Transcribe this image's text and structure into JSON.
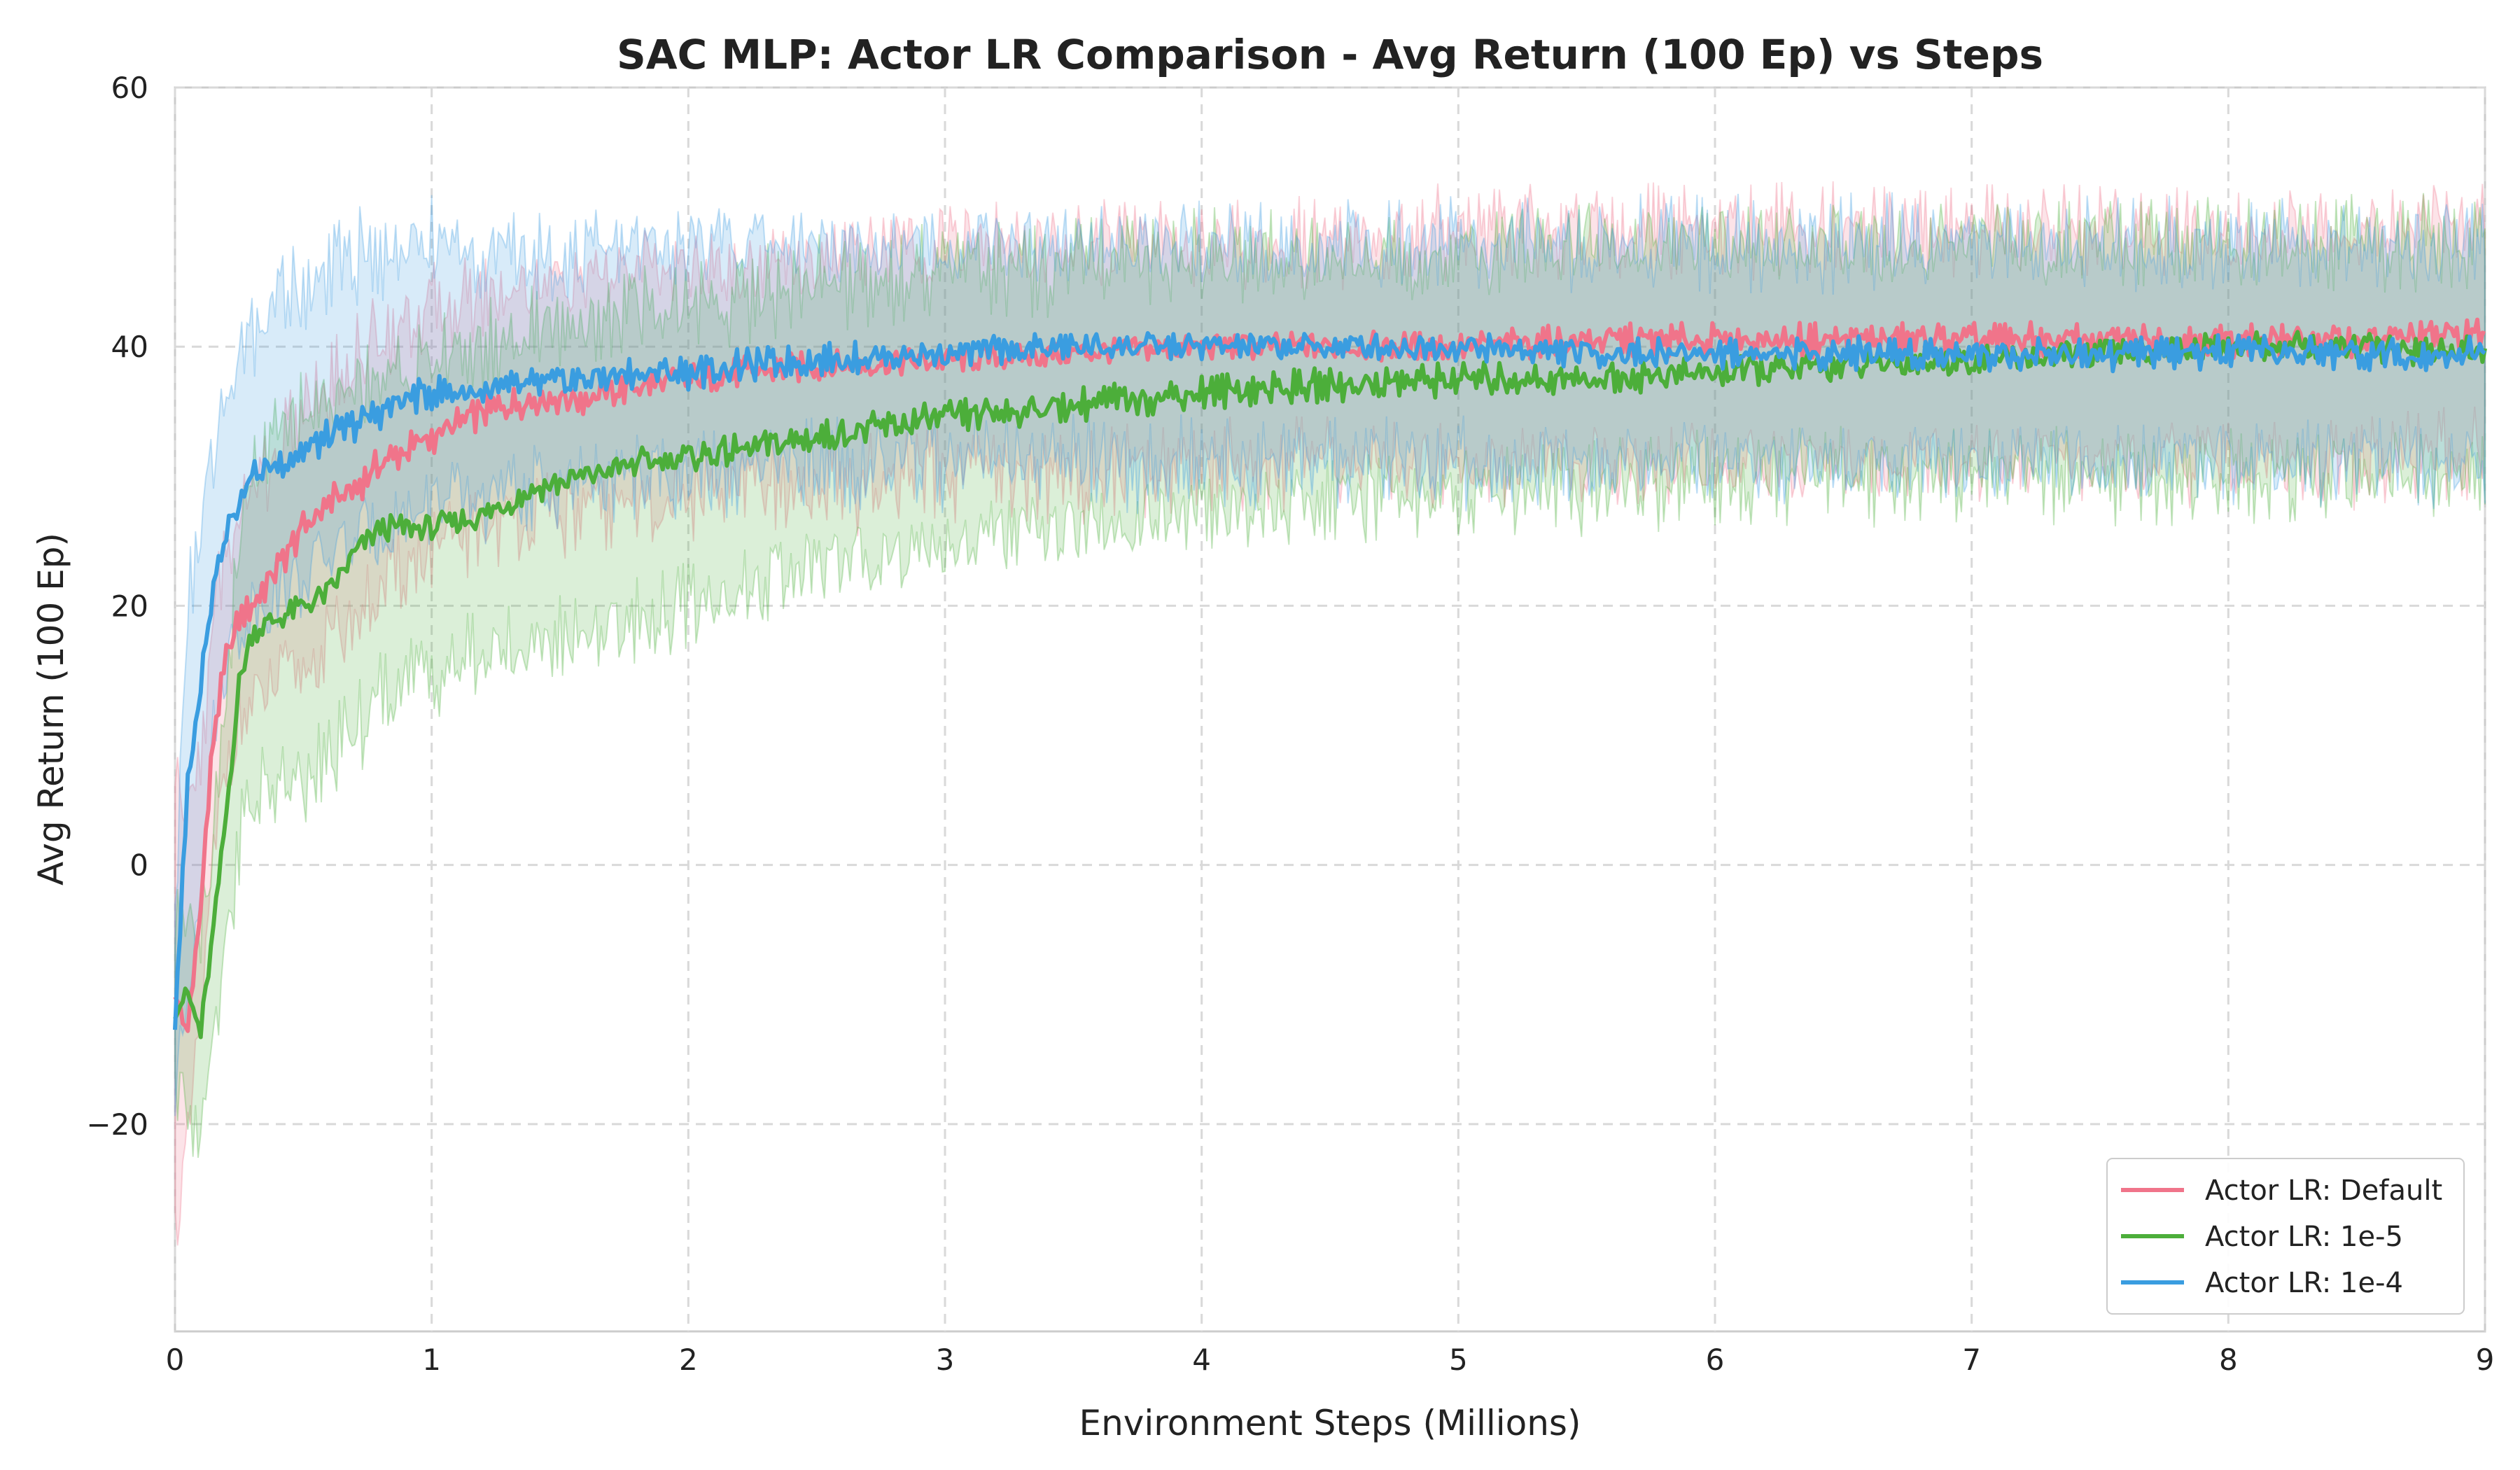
{
  "chart_data": {
    "type": "line",
    "title": "SAC MLP: Actor LR Comparison - Avg Return (100 Ep) vs Steps",
    "xlabel": "Environment Steps (Millions)",
    "ylabel": "Avg Return (100 Ep)",
    "xlim": [
      0,
      9
    ],
    "ylim": [
      -36,
      60
    ],
    "xticks": [
      0,
      1,
      2,
      3,
      4,
      5,
      6,
      7,
      8,
      9
    ],
    "xtick_labels": [
      "0",
      "1",
      "2",
      "3",
      "4",
      "5",
      "6",
      "7",
      "8",
      "9"
    ],
    "yticks": [
      -20,
      0,
      20,
      40,
      60
    ],
    "ytick_labels": [
      "−20",
      "0",
      "20",
      "40",
      "60"
    ],
    "grid": true,
    "legend_position": "lower-right",
    "series": [
      {
        "name": "Actor LR: Default",
        "color": "#f0748a",
        "x": [
          0,
          0.05,
          0.1,
          0.15,
          0.2,
          0.25,
          0.3,
          0.4,
          0.5,
          0.6,
          0.7,
          0.8,
          0.9,
          1.0,
          1.2,
          1.4,
          1.6,
          1.8,
          2.0,
          2.2,
          2.5,
          3.0,
          3.5,
          4.0,
          4.5,
          5.0,
          5.5,
          6.0,
          6.5,
          7.0,
          7.5,
          8.0,
          8.5,
          9.0
        ],
        "y": [
          -10,
          -13,
          -3,
          10,
          16,
          19,
          20,
          23,
          26,
          28,
          29,
          31,
          32,
          33,
          35,
          36,
          36,
          37,
          37.5,
          38,
          38.5,
          39,
          39.5,
          40,
          40,
          40,
          40.5,
          40.5,
          40.5,
          40.5,
          40.5,
          40.5,
          40.5,
          41
        ],
        "band_lower": [
          -28,
          -22,
          -12,
          0,
          8,
          11,
          12,
          14,
          15,
          17,
          19,
          21,
          23,
          24,
          26,
          27,
          27,
          28,
          28,
          29,
          29,
          30,
          30,
          31,
          31,
          31,
          31,
          31,
          31,
          31,
          31,
          31,
          31,
          32
        ],
        "band_upper": [
          6,
          4,
          8,
          20,
          24,
          27,
          29,
          32,
          35,
          37,
          39,
          41,
          42,
          43,
          44,
          45,
          45,
          46,
          46,
          46,
          47,
          48,
          48,
          48,
          48,
          49,
          49,
          49,
          49,
          49,
          49,
          49,
          49,
          50
        ]
      },
      {
        "name": "Actor LR: 1e-5",
        "color": "#4cae3a",
        "x": [
          0,
          0.05,
          0.1,
          0.15,
          0.2,
          0.25,
          0.3,
          0.4,
          0.5,
          0.6,
          0.7,
          0.8,
          0.9,
          1.0,
          1.2,
          1.4,
          1.6,
          1.8,
          2.0,
          2.2,
          2.5,
          3.0,
          3.5,
          4.0,
          4.5,
          5.0,
          5.5,
          6.0,
          6.5,
          7.0,
          7.5,
          8.0,
          8.5,
          9.0
        ],
        "y": [
          -11,
          -10,
          -13,
          -5,
          4,
          14,
          18,
          19,
          20,
          21,
          24,
          26,
          26,
          26,
          27,
          29,
          30,
          31,
          31.5,
          32,
          33,
          34.5,
          35.5,
          36.5,
          37,
          37.5,
          37.5,
          38,
          38.5,
          39,
          39.5,
          40,
          40,
          39.5
        ],
        "band_lower": [
          -17,
          -18,
          -20,
          -12,
          -6,
          2,
          5,
          6,
          6,
          8,
          10,
          13,
          14,
          15,
          16,
          17,
          18,
          19,
          20,
          21,
          23,
          25,
          26,
          27,
          28,
          29,
          29,
          30,
          30,
          30,
          30,
          30,
          30,
          30
        ],
        "band_upper": [
          -5,
          -2,
          -5,
          3,
          14,
          25,
          30,
          33,
          35,
          36,
          37,
          38,
          38,
          39,
          40,
          41,
          42,
          43,
          43,
          44,
          45,
          46,
          46,
          47,
          47,
          47,
          48,
          48,
          48,
          48,
          48,
          48,
          48,
          48
        ]
      },
      {
        "name": "Actor LR: 1e-4",
        "color": "#3a9de0",
        "x": [
          0,
          0.05,
          0.1,
          0.15,
          0.2,
          0.25,
          0.3,
          0.4,
          0.5,
          0.6,
          0.7,
          0.8,
          0.9,
          1.0,
          1.2,
          1.4,
          1.6,
          1.8,
          2.0,
          2.2,
          2.5,
          3.0,
          3.5,
          4.0,
          4.5,
          5.0,
          5.5,
          6.0,
          6.5,
          7.0,
          7.5,
          8.0,
          8.5,
          9.0
        ],
        "y": [
          -12,
          6,
          14,
          22,
          26,
          28,
          30,
          31,
          32,
          33,
          34,
          35,
          36,
          36.5,
          36.5,
          37,
          37.5,
          38,
          38,
          38.5,
          39,
          39.5,
          40,
          40,
          40,
          40,
          39.5,
          39.5,
          39.5,
          39.5,
          39.5,
          39.5,
          39.5,
          39.5
        ],
        "band_lower": [
          -18,
          -10,
          0,
          10,
          16,
          18,
          20,
          21,
          22,
          24,
          25,
          26,
          27,
          28,
          28,
          29,
          29,
          30,
          30,
          30,
          31,
          31,
          31,
          31,
          31,
          31,
          31,
          31,
          31,
          31,
          31,
          31,
          31,
          31
        ],
        "band_upper": [
          -4,
          20,
          26,
          32,
          36,
          39,
          41,
          44,
          45,
          46,
          47,
          47,
          48,
          48,
          47,
          47,
          47,
          48,
          48,
          48,
          48,
          48,
          48,
          48,
          48,
          48,
          48,
          48,
          48,
          48,
          48,
          48,
          48,
          48
        ]
      }
    ]
  }
}
